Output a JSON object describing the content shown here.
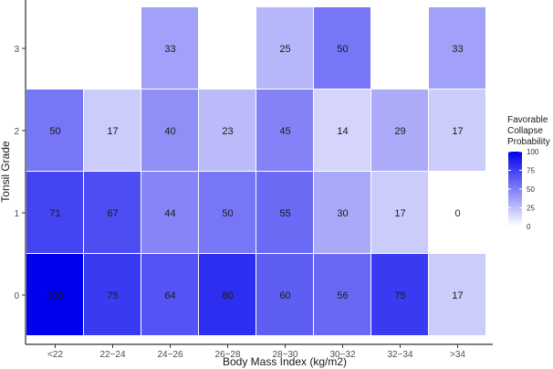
{
  "chart_data": {
    "type": "heatmap",
    "xlabel": "Body Mass Index (kg/m2)",
    "ylabel": "Tonsil Grade",
    "x_categories": [
      "<22",
      "22−24",
      "24−26",
      "26−28",
      "28−30",
      "30−32",
      "32−34",
      ">34"
    ],
    "y_categories": [
      "0",
      "1",
      "2",
      "3"
    ],
    "rows": [
      {
        "y": "3",
        "values": [
          null,
          null,
          33,
          null,
          25,
          50,
          null,
          33
        ]
      },
      {
        "y": "2",
        "values": [
          50,
          17,
          40,
          23,
          45,
          14,
          29,
          17
        ]
      },
      {
        "y": "1",
        "values": [
          71,
          67,
          44,
          50,
          55,
          30,
          17,
          0
        ]
      },
      {
        "y": "0",
        "values": [
          100,
          75,
          64,
          80,
          60,
          56,
          75,
          17
        ]
      }
    ],
    "legend": {
      "title_lines": [
        "Favorable",
        "Collapse",
        "Probability"
      ],
      "ticks": [
        100,
        75,
        50,
        25,
        0
      ],
      "range": [
        0,
        100
      ],
      "color_low": "#ffffff",
      "color_high": "#0000ee"
    },
    "grid": false
  }
}
